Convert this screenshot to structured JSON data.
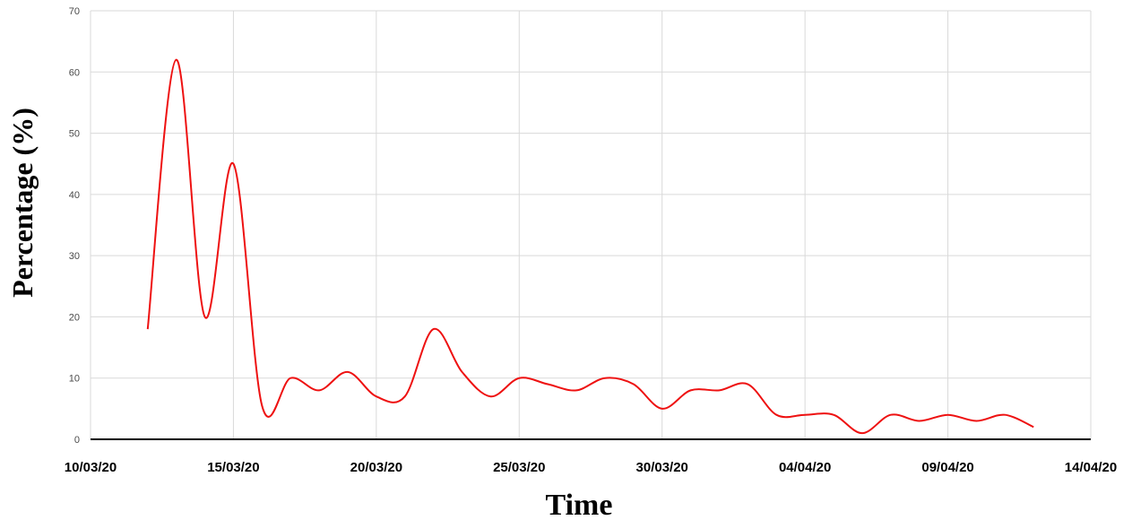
{
  "chart_data": {
    "type": "line",
    "title": "",
    "xlabel": "Time",
    "ylabel": "Percentage (%)",
    "x_tick_labels": [
      "10/03/20",
      "15/03/20",
      "20/03/20",
      "25/03/20",
      "30/03/20",
      "04/04/20",
      "09/04/20",
      "14/04/20"
    ],
    "x_ticks": [
      "2020-03-10",
      "2020-03-15",
      "2020-03-20",
      "2020-03-25",
      "2020-03-30",
      "2020-04-04",
      "2020-04-09",
      "2020-04-14"
    ],
    "xlim": [
      "2020-03-10",
      "2020-04-14"
    ],
    "ylim": [
      0,
      70
    ],
    "y_ticks": [
      0,
      10,
      20,
      30,
      40,
      50,
      60,
      70
    ],
    "grid": true,
    "legend": "none",
    "series": [
      {
        "color": "#ee1111",
        "x": [
          "2020-03-12",
          "2020-03-13",
          "2020-03-14",
          "2020-03-15",
          "2020-03-16",
          "2020-03-17",
          "2020-03-18",
          "2020-03-19",
          "2020-03-20",
          "2020-03-21",
          "2020-03-22",
          "2020-03-23",
          "2020-03-24",
          "2020-03-25",
          "2020-03-26",
          "2020-03-27",
          "2020-03-28",
          "2020-03-29",
          "2020-03-30",
          "2020-03-31",
          "2020-04-01",
          "2020-04-02",
          "2020-04-03",
          "2020-04-04",
          "2020-04-05",
          "2020-04-06",
          "2020-04-07",
          "2020-04-08",
          "2020-04-09",
          "2020-04-10",
          "2020-04-11",
          "2020-04-12"
        ],
        "y": [
          18,
          62,
          20,
          45,
          5.5,
          10,
          8,
          11,
          7,
          7,
          18,
          11,
          7,
          10,
          9,
          8,
          10,
          9,
          5,
          8,
          8,
          9,
          4,
          4,
          4,
          1,
          4,
          3,
          4,
          3,
          4,
          2
        ]
      }
    ]
  }
}
